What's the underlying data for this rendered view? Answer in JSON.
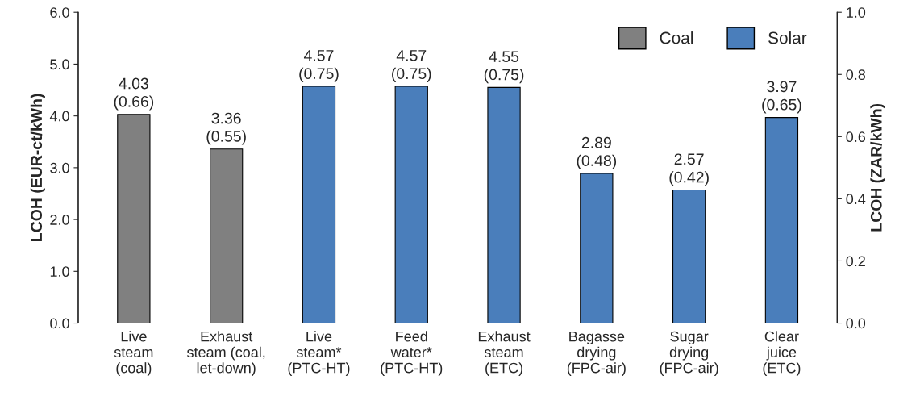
{
  "chart_data": {
    "type": "bar",
    "ylabel": "LCOH (EUR-ct/kWh)",
    "y2label": "LCOH (ZAR/kWh)",
    "categories": [
      "Live\nsteam\n(coal)",
      "Exhaust\nsteam (coal,\nlet-down)",
      "Live\nsteam*\n(PTC-HT)",
      "Feed\nwater*\n(PTC-HT)",
      "Exhaust\nsteam\n(ETC)",
      "Bagasse\ndrying\n(FPC-air)",
      "Sugar\ndrying\n(FPC-air)",
      "Clear\njuice\n(ETC)"
    ],
    "series": [
      {
        "name": "Coal",
        "color": "#808080",
        "values": [
          4.03,
          3.36,
          null,
          null,
          null,
          null,
          null,
          null
        ]
      },
      {
        "name": "Solar",
        "color": "#4a7ebb",
        "values": [
          null,
          null,
          4.57,
          4.57,
          4.55,
          2.89,
          2.57,
          3.97
        ]
      }
    ],
    "value_labels": [
      "4.03\n(0.66)",
      "3.36\n(0.55)",
      "4.57\n(0.75)",
      "4.57\n(0.75)",
      "4.55\n(0.75)",
      "2.89\n(0.48)",
      "2.57\n(0.42)",
      "3.97\n(0.65)"
    ],
    "ylim": [
      0,
      6
    ],
    "yticks": [
      {
        "value": 0,
        "label": "0.0"
      },
      {
        "value": 1,
        "label": "1.0"
      },
      {
        "value": 2,
        "label": "2.0"
      },
      {
        "value": 3,
        "label": "3.0"
      },
      {
        "value": 4,
        "label": "4.0"
      },
      {
        "value": 5,
        "label": "5.0"
      },
      {
        "value": 6,
        "label": "6.0"
      }
    ],
    "y2lim": [
      0,
      1
    ],
    "y2ticks": [
      {
        "value": 0,
        "label": "0.0"
      },
      {
        "value": 0.2,
        "label": "0.2"
      },
      {
        "value": 0.4,
        "label": "0.4"
      },
      {
        "value": 0.6,
        "label": "0.6"
      },
      {
        "value": 0.8,
        "label": "0.8"
      },
      {
        "value": 1,
        "label": "1.0"
      }
    ],
    "grid": false,
    "legend": "top right"
  }
}
